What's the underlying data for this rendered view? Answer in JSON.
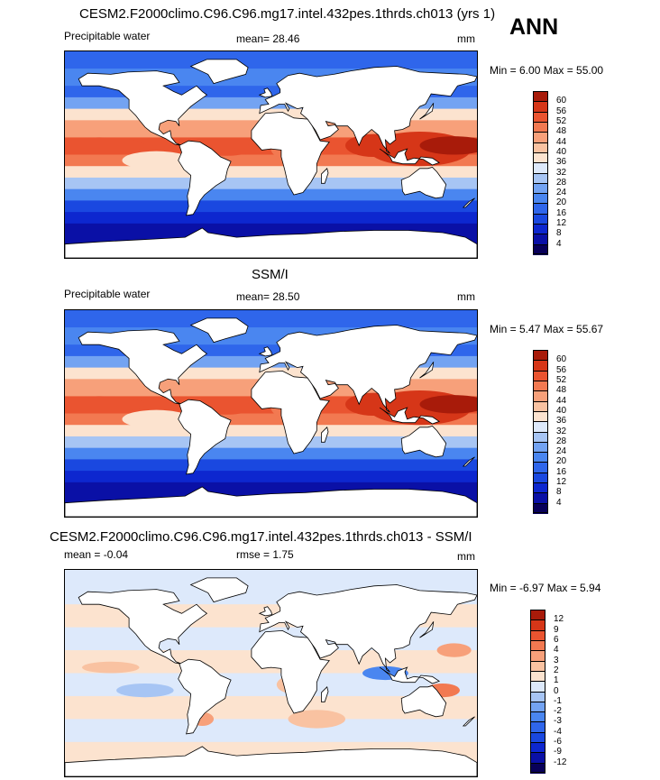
{
  "header": {
    "ann_label": "ANN"
  },
  "panels": [
    {
      "title": "CESM2.F2000climo.C96.C96.mg17.intel.432pes.1thrds.ch013 (yrs 1)",
      "left_label": "Precipitable water",
      "stat_label": "mean=  28.46",
      "units": "mm",
      "minmax": "Min =   6.00 Max =  55.00",
      "scale": "abs",
      "ticks": [
        "60",
        "56",
        "52",
        "48",
        "44",
        "40",
        "36",
        "32",
        "28",
        "24",
        "20",
        "16",
        "12",
        "8",
        "4"
      ]
    },
    {
      "title": "SSM/I",
      "left_label": "Precipitable water",
      "stat_label": "mean=  28.50",
      "units": "mm",
      "minmax": "Min =   5.47 Max =  55.67",
      "scale": "abs",
      "ticks": [
        "60",
        "56",
        "52",
        "48",
        "44",
        "40",
        "36",
        "32",
        "28",
        "24",
        "20",
        "16",
        "12",
        "8",
        "4"
      ]
    },
    {
      "title": "CESM2.F2000climo.C96.C96.mg17.intel.432pes.1thrds.ch013 - SSM/I",
      "left_label": "mean =  -0.04",
      "stat_label": "rmse =   1.75",
      "units": "mm",
      "minmax": "Min =  -6.97 Max =   5.94",
      "scale": "diff",
      "ticks": [
        "12",
        "9",
        "6",
        "4",
        "3",
        "2",
        "1",
        "0",
        "-1",
        "-2",
        "-3",
        "-4",
        "-6",
        "-9",
        "-12"
      ]
    }
  ],
  "colors": {
    "scale": [
      "#08005a",
      "#0a10a6",
      "#0d27cf",
      "#1a48e0",
      "#2f66eb",
      "#4a86f0",
      "#73a3f2",
      "#a7c5f4",
      "#dde9fb",
      "#fce3cf",
      "#f9c2a1",
      "#f7a07a",
      "#f27951",
      "#ea5430",
      "#d63618",
      "#a81b0a"
    ],
    "land": "#ffffff",
    "outline": "#000000"
  }
}
